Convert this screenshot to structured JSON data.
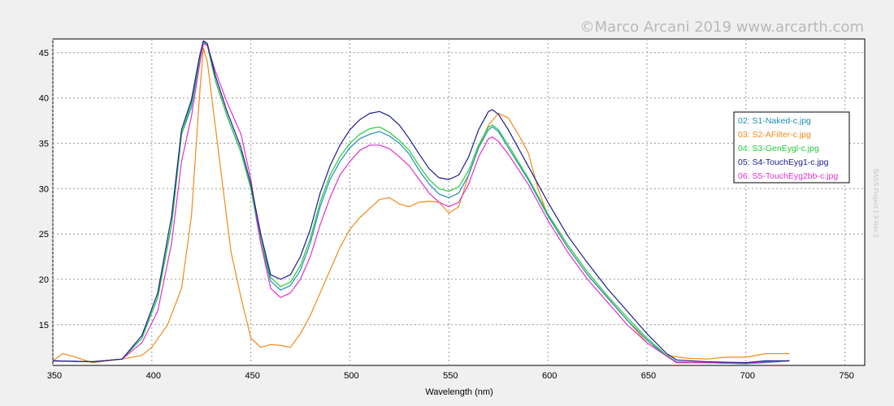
{
  "watermark": "©Marco Arcani 2019 www.arcarth.com",
  "side_text": "BASS Project 1.9 Rev.3",
  "chart_data": {
    "type": "line",
    "title": "",
    "xlabel": "Wavelength (nm)",
    "ylabel": "",
    "xlim": [
      350,
      760
    ],
    "ylim": [
      10.5,
      46.5
    ],
    "xticks": [
      350,
      400,
      450,
      500,
      550,
      600,
      650,
      700,
      750
    ],
    "yticks": [
      15,
      20,
      25,
      30,
      35,
      40,
      45
    ],
    "grid": true,
    "legend_position": "right",
    "series": [
      {
        "name": "02: S1-Naked-c.jpg",
        "color": "#1f8fb0",
        "points": [
          [
            350,
            11
          ],
          [
            370,
            10.9
          ],
          [
            385,
            11.2
          ],
          [
            395,
            13.5
          ],
          [
            403,
            18
          ],
          [
            410,
            26
          ],
          [
            415,
            36
          ],
          [
            420,
            39
          ],
          [
            424,
            44
          ],
          [
            426,
            46.2
          ],
          [
            428,
            45.8
          ],
          [
            432,
            42
          ],
          [
            438,
            38
          ],
          [
            445,
            34
          ],
          [
            450,
            30
          ],
          [
            455,
            24
          ],
          [
            460,
            19.8
          ],
          [
            465,
            18.8
          ],
          [
            470,
            19.3
          ],
          [
            475,
            21
          ],
          [
            480,
            24
          ],
          [
            485,
            28
          ],
          [
            490,
            31
          ],
          [
            495,
            33
          ],
          [
            500,
            34.5
          ],
          [
            505,
            35.5
          ],
          [
            510,
            36
          ],
          [
            515,
            36.3
          ],
          [
            520,
            35.8
          ],
          [
            525,
            35
          ],
          [
            530,
            33.8
          ],
          [
            535,
            32
          ],
          [
            540,
            30.5
          ],
          [
            545,
            29.4
          ],
          [
            550,
            29
          ],
          [
            555,
            29.5
          ],
          [
            560,
            31.5
          ],
          [
            565,
            34.5
          ],
          [
            570,
            36.5
          ],
          [
            572,
            36.8
          ],
          [
            575,
            36.3
          ],
          [
            580,
            34.5
          ],
          [
            590,
            31
          ],
          [
            600,
            27
          ],
          [
            610,
            23.5
          ],
          [
            620,
            20.5
          ],
          [
            630,
            18
          ],
          [
            640,
            15.5
          ],
          [
            650,
            13.3
          ],
          [
            660,
            11.5
          ],
          [
            665,
            10.8
          ],
          [
            680,
            10.8
          ],
          [
            700,
            10.7
          ],
          [
            710,
            10.8
          ],
          [
            722,
            11
          ]
        ]
      },
      {
        "name": "03: S2-AFilter-c.jpg",
        "color": "#f08a1c",
        "points": [
          [
            350,
            11
          ],
          [
            355,
            11.8
          ],
          [
            360,
            11.5
          ],
          [
            370,
            10.8
          ],
          [
            385,
            11.2
          ],
          [
            395,
            11.6
          ],
          [
            400,
            12.5
          ],
          [
            408,
            15
          ],
          [
            415,
            19
          ],
          [
            420,
            27
          ],
          [
            424,
            40
          ],
          [
            426,
            45.5
          ],
          [
            428,
            44
          ],
          [
            432,
            37
          ],
          [
            436,
            30
          ],
          [
            440,
            23
          ],
          [
            445,
            18
          ],
          [
            450,
            13.5
          ],
          [
            455,
            12.5
          ],
          [
            460,
            12.8
          ],
          [
            465,
            12.7
          ],
          [
            470,
            12.5
          ],
          [
            475,
            14
          ],
          [
            480,
            16
          ],
          [
            485,
            18.5
          ],
          [
            490,
            21
          ],
          [
            495,
            23.5
          ],
          [
            500,
            25.5
          ],
          [
            505,
            26.8
          ],
          [
            510,
            27.8
          ],
          [
            515,
            28.8
          ],
          [
            520,
            29
          ],
          [
            525,
            28.3
          ],
          [
            530,
            28
          ],
          [
            535,
            28.5
          ],
          [
            540,
            28.6
          ],
          [
            545,
            28.5
          ],
          [
            550,
            27.3
          ],
          [
            555,
            28
          ],
          [
            560,
            31.5
          ],
          [
            565,
            34.5
          ],
          [
            570,
            37
          ],
          [
            575,
            38.3
          ],
          [
            580,
            37.8
          ],
          [
            585,
            36
          ],
          [
            590,
            34
          ],
          [
            595,
            30
          ],
          [
            600,
            27
          ],
          [
            610,
            23.5
          ],
          [
            620,
            20.5
          ],
          [
            630,
            18
          ],
          [
            640,
            15.5
          ],
          [
            650,
            13
          ],
          [
            660,
            11.6
          ],
          [
            670,
            11.3
          ],
          [
            680,
            11.2
          ],
          [
            690,
            11.4
          ],
          [
            700,
            11.4
          ],
          [
            710,
            11.8
          ],
          [
            722,
            11.8
          ]
        ]
      },
      {
        "name": "04: S3-GenEygl-c.jpg",
        "color": "#22cc3a",
        "points": [
          [
            350,
            11
          ],
          [
            370,
            10.9
          ],
          [
            385,
            11.2
          ],
          [
            395,
            13.5
          ],
          [
            403,
            18
          ],
          [
            410,
            26
          ],
          [
            415,
            36
          ],
          [
            420,
            39.5
          ],
          [
            424,
            44
          ],
          [
            426,
            46.2
          ],
          [
            428,
            45.8
          ],
          [
            432,
            42
          ],
          [
            438,
            38
          ],
          [
            445,
            34
          ],
          [
            450,
            30
          ],
          [
            455,
            24.5
          ],
          [
            460,
            20.2
          ],
          [
            465,
            19.2
          ],
          [
            470,
            19.7
          ],
          [
            475,
            21.5
          ],
          [
            480,
            24.5
          ],
          [
            485,
            28.5
          ],
          [
            490,
            31.5
          ],
          [
            495,
            33.5
          ],
          [
            500,
            35
          ],
          [
            505,
            36
          ],
          [
            510,
            36.6
          ],
          [
            515,
            36.8
          ],
          [
            520,
            36.2
          ],
          [
            525,
            35.3
          ],
          [
            530,
            34.2
          ],
          [
            535,
            32.5
          ],
          [
            540,
            31
          ],
          [
            545,
            30
          ],
          [
            550,
            29.7
          ],
          [
            555,
            30.2
          ],
          [
            560,
            32
          ],
          [
            565,
            34.8
          ],
          [
            570,
            36.8
          ],
          [
            572,
            37
          ],
          [
            575,
            36.5
          ],
          [
            580,
            34.8
          ],
          [
            590,
            31.2
          ],
          [
            600,
            27.2
          ],
          [
            610,
            23.8
          ],
          [
            620,
            20.8
          ],
          [
            630,
            18.2
          ],
          [
            640,
            15.8
          ],
          [
            650,
            13.5
          ],
          [
            660,
            11.6
          ],
          [
            665,
            10.9
          ],
          [
            680,
            10.8
          ],
          [
            700,
            10.7
          ],
          [
            710,
            10.9
          ],
          [
            722,
            11
          ]
        ]
      },
      {
        "name": "05: S4-TouchEyg1-c.jpg",
        "color": "#1c1c8c",
        "points": [
          [
            350,
            11
          ],
          [
            370,
            10.9
          ],
          [
            385,
            11.2
          ],
          [
            395,
            13.8
          ],
          [
            403,
            18.5
          ],
          [
            410,
            27
          ],
          [
            415,
            36.5
          ],
          [
            420,
            39.8
          ],
          [
            424,
            44.5
          ],
          [
            426,
            46.3
          ],
          [
            428,
            46
          ],
          [
            432,
            42.5
          ],
          [
            438,
            38.5
          ],
          [
            445,
            34.5
          ],
          [
            450,
            30.5
          ],
          [
            455,
            25
          ],
          [
            460,
            20.5
          ],
          [
            465,
            20
          ],
          [
            470,
            20.5
          ],
          [
            475,
            22.5
          ],
          [
            480,
            25.5
          ],
          [
            485,
            29.5
          ],
          [
            490,
            32.5
          ],
          [
            495,
            34.8
          ],
          [
            500,
            36.5
          ],
          [
            505,
            37.6
          ],
          [
            510,
            38.3
          ],
          [
            515,
            38.5
          ],
          [
            520,
            38
          ],
          [
            525,
            37
          ],
          [
            530,
            35.5
          ],
          [
            535,
            33.8
          ],
          [
            540,
            32.2
          ],
          [
            545,
            31.2
          ],
          [
            550,
            31
          ],
          [
            555,
            31.5
          ],
          [
            560,
            33.5
          ],
          [
            565,
            36.5
          ],
          [
            570,
            38.5
          ],
          [
            572,
            38.7
          ],
          [
            575,
            38.2
          ],
          [
            580,
            36.5
          ],
          [
            590,
            32.5
          ],
          [
            600,
            28.5
          ],
          [
            610,
            24.8
          ],
          [
            620,
            21.8
          ],
          [
            630,
            19
          ],
          [
            640,
            16.5
          ],
          [
            650,
            14
          ],
          [
            660,
            11.8
          ],
          [
            665,
            11.1
          ],
          [
            680,
            10.9
          ],
          [
            700,
            10.8
          ],
          [
            710,
            11
          ],
          [
            722,
            11
          ]
        ]
      },
      {
        "name": "06: S5-TouchEyg2bb-c.jpg",
        "color": "#e030d0",
        "points": [
          [
            350,
            11
          ],
          [
            370,
            10.9
          ],
          [
            385,
            11.2
          ],
          [
            395,
            13
          ],
          [
            403,
            16.5
          ],
          [
            410,
            24
          ],
          [
            415,
            33
          ],
          [
            420,
            38
          ],
          [
            424,
            43.5
          ],
          [
            426,
            46
          ],
          [
            428,
            45.8
          ],
          [
            432,
            43
          ],
          [
            438,
            39.5
          ],
          [
            445,
            36
          ],
          [
            450,
            31
          ],
          [
            455,
            24
          ],
          [
            460,
            19
          ],
          [
            465,
            18
          ],
          [
            470,
            18.5
          ],
          [
            475,
            20
          ],
          [
            480,
            22.5
          ],
          [
            485,
            26
          ],
          [
            490,
            29
          ],
          [
            495,
            31.5
          ],
          [
            500,
            33
          ],
          [
            505,
            34.2
          ],
          [
            510,
            34.8
          ],
          [
            515,
            34.8
          ],
          [
            520,
            34.4
          ],
          [
            525,
            33.5
          ],
          [
            530,
            32.5
          ],
          [
            535,
            31
          ],
          [
            540,
            29.5
          ],
          [
            545,
            28.5
          ],
          [
            550,
            28
          ],
          [
            555,
            28.5
          ],
          [
            560,
            30.5
          ],
          [
            565,
            33.5
          ],
          [
            570,
            35.5
          ],
          [
            572,
            35.7
          ],
          [
            575,
            35.2
          ],
          [
            580,
            33.8
          ],
          [
            590,
            30.5
          ],
          [
            600,
            26.5
          ],
          [
            610,
            23
          ],
          [
            620,
            20
          ],
          [
            630,
            17.5
          ],
          [
            640,
            15
          ],
          [
            650,
            13
          ],
          [
            660,
            11.5
          ],
          [
            665,
            10.8
          ],
          [
            680,
            10.8
          ],
          [
            700,
            10.7
          ],
          [
            710,
            10.9
          ],
          [
            722,
            11
          ]
        ]
      }
    ]
  }
}
